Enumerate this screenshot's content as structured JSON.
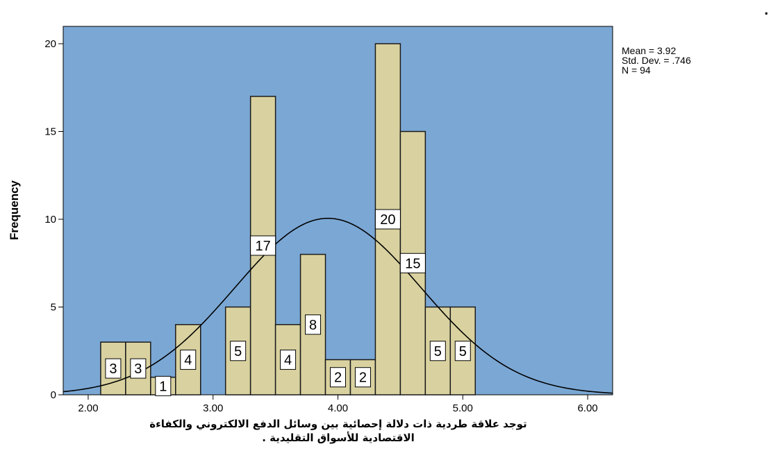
{
  "chart_data": {
    "type": "bar",
    "title": "توجد علاقة طردية ذات دلالة إحصائية بين وسائل الدفع الالكتروني والكفاءة الاقتصادية للاسواق التقليدية .",
    "xlabel_lines": [
      "توجد علاقة طردية ذات دلالة إحصائية بين وسائل الدفع الالكتروني والكفاءة",
      "الاقتصادية للأسواق التقليدية ."
    ],
    "ylabel": "Frequency",
    "x_ticks": [
      "2.00",
      "3.00",
      "4.00",
      "5.00",
      "6.00"
    ],
    "x_tick_values": [
      2,
      3,
      4,
      5,
      6
    ],
    "y_ticks": [
      "0",
      "5",
      "10",
      "15",
      "20"
    ],
    "y_tick_values": [
      0,
      5,
      10,
      15,
      20
    ],
    "xlim": [
      1.8,
      6.2
    ],
    "ylim": [
      0,
      22
    ],
    "bin_width": 0.2,
    "bins": [
      {
        "x": 2.2,
        "value": 3,
        "label": "3"
      },
      {
        "x": 2.4,
        "value": 3,
        "label": "3"
      },
      {
        "x": 2.6,
        "value": 1,
        "label": "1"
      },
      {
        "x": 2.8,
        "value": 4,
        "label": "4"
      },
      {
        "x": 3.2,
        "value": 5,
        "label": "5"
      },
      {
        "x": 3.4,
        "value": 17,
        "label": "17"
      },
      {
        "x": 3.6,
        "value": 4,
        "label": "4"
      },
      {
        "x": 3.8,
        "value": 8,
        "label": "8"
      },
      {
        "x": 4.0,
        "value": 2,
        "label": "2"
      },
      {
        "x": 4.2,
        "value": 2,
        "label": "2"
      },
      {
        "x": 4.4,
        "value": 20,
        "label": "20"
      },
      {
        "x": 4.6,
        "value": 15,
        "label": "15"
      },
      {
        "x": 4.8,
        "value": 5,
        "label": "5"
      },
      {
        "x": 5.0,
        "value": 5,
        "label": "5"
      }
    ],
    "stats": {
      "mean": "Mean = 3.92",
      "std": "Std. Dev. = .746",
      "n": "N = 94"
    },
    "normal_curve": {
      "mean": 3.92,
      "std": 0.746,
      "n": 94
    },
    "grid": false,
    "colors": {
      "plot_background": "#7ba7d4",
      "bar_fill": "#d9d2a0",
      "bar_stroke": "#1a1a1a",
      "curve": "#000000"
    }
  }
}
